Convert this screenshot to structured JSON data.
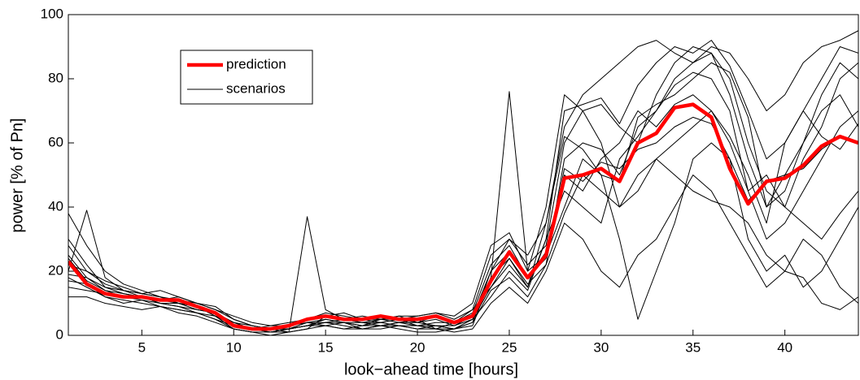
{
  "chart_data": {
    "type": "line",
    "x_label": "look−ahead time [hours]",
    "y_label": "power [% of Pn]",
    "x": [
      1,
      2,
      3,
      4,
      5,
      6,
      7,
      8,
      9,
      10,
      11,
      12,
      13,
      14,
      15,
      16,
      17,
      18,
      19,
      20,
      21,
      22,
      23,
      24,
      25,
      26,
      27,
      28,
      29,
      30,
      31,
      32,
      33,
      34,
      35,
      36,
      37,
      38,
      39,
      40,
      41,
      42,
      43,
      44
    ],
    "xlim": [
      1,
      44
    ],
    "xticks": [
      5,
      10,
      15,
      20,
      25,
      30,
      35,
      40
    ],
    "ylim": [
      0,
      100
    ],
    "yticks": [
      0,
      20,
      40,
      60,
      80,
      100
    ],
    "legend": "upper left",
    "series": [
      {
        "name": "scenarios",
        "color": "#000000",
        "lines": [
          [
            30,
            22,
            15,
            14,
            13,
            12,
            10,
            9,
            6,
            4,
            3,
            2,
            2,
            3,
            5,
            4,
            3,
            4,
            5,
            3,
            2,
            4,
            8,
            15,
            24,
            16,
            22,
            55,
            60,
            58,
            50,
            65,
            70,
            80,
            85,
            88,
            75,
            55,
            40,
            50,
            60,
            70,
            75,
            65
          ],
          [
            18,
            15,
            12,
            10,
            11,
            9,
            8,
            7,
            5,
            2,
            1,
            1,
            2,
            4,
            3,
            2,
            3,
            5,
            6,
            4,
            5,
            3,
            5,
            12,
            20,
            14,
            30,
            45,
            40,
            35,
            55,
            62,
            70,
            78,
            82,
            80,
            70,
            45,
            30,
            35,
            45,
            55,
            65,
            70
          ],
          [
            25,
            18,
            14,
            13,
            12,
            11,
            12,
            10,
            8,
            5,
            3,
            2,
            1,
            2,
            6,
            7,
            5,
            4,
            3,
            2,
            3,
            2,
            4,
            20,
            30,
            22,
            28,
            60,
            70,
            72,
            65,
            60,
            75,
            85,
            90,
            88,
            80,
            60,
            45,
            40,
            55,
            65,
            80,
            85
          ],
          [
            38,
            28,
            20,
            16,
            14,
            12,
            10,
            8,
            7,
            4,
            2,
            1,
            1,
            37,
            8,
            5,
            4,
            3,
            2,
            1,
            1,
            2,
            3,
            18,
            76,
            20,
            40,
            75,
            70,
            60,
            40,
            50,
            55,
            60,
            65,
            70,
            62,
            50,
            35,
            60,
            70,
            80,
            90,
            88
          ],
          [
            12,
            12,
            10,
            9,
            8,
            9,
            7,
            6,
            4,
            2,
            1,
            0,
            1,
            2,
            3,
            4,
            2,
            3,
            4,
            5,
            2,
            1,
            2,
            10,
            15,
            10,
            20,
            35,
            30,
            20,
            15,
            25,
            30,
            40,
            50,
            45,
            35,
            25,
            15,
            20,
            30,
            25,
            15,
            10
          ],
          [
            20,
            39,
            18,
            14,
            12,
            10,
            9,
            8,
            7,
            3,
            2,
            3,
            4,
            5,
            6,
            5,
            4,
            4,
            5,
            6,
            7,
            5,
            8,
            25,
            30,
            25,
            35,
            65,
            75,
            80,
            85,
            90,
            92,
            88,
            85,
            90,
            88,
            80,
            70,
            75,
            85,
            90,
            92,
            95
          ],
          [
            15,
            14,
            13,
            12,
            11,
            10,
            9,
            7,
            5,
            3,
            2,
            2,
            3,
            4,
            4,
            3,
            2,
            2,
            3,
            3,
            4,
            4,
            7,
            22,
            28,
            18,
            26,
            50,
            45,
            55,
            60,
            70,
            65,
            72,
            75,
            70,
            60,
            45,
            50,
            40,
            35,
            30,
            38,
            45
          ],
          [
            22,
            20,
            16,
            14,
            13,
            14,
            12,
            10,
            8,
            6,
            4,
            3,
            3,
            5,
            7,
            6,
            5,
            5,
            6,
            6,
            7,
            6,
            10,
            28,
            32,
            20,
            25,
            40,
            55,
            50,
            30,
            5,
            20,
            35,
            55,
            60,
            55,
            30,
            20,
            25,
            15,
            20,
            30,
            40
          ],
          [
            28,
            20,
            17,
            15,
            13,
            12,
            11,
            10,
            9,
            5,
            3,
            2,
            2,
            3,
            4,
            5,
            6,
            5,
            4,
            3,
            3,
            2,
            5,
            15,
            22,
            15,
            30,
            70,
            72,
            74,
            66,
            78,
            85,
            90,
            88,
            92,
            84,
            70,
            55,
            60,
            70,
            62,
            58,
            66
          ],
          [
            17,
            16,
            12,
            11,
            10,
            9,
            8,
            7,
            6,
            2,
            1,
            1,
            2,
            3,
            3,
            2,
            2,
            3,
            3,
            2,
            2,
            2,
            4,
            14,
            18,
            12,
            22,
            38,
            50,
            45,
            40,
            45,
            55,
            50,
            45,
            42,
            40,
            35,
            25,
            20,
            18,
            10,
            8,
            12
          ],
          [
            24,
            17,
            14,
            12,
            12,
            11,
            10,
            9,
            6,
            3,
            2,
            2,
            2,
            4,
            5,
            4,
            4,
            5,
            5,
            4,
            6,
            4,
            6,
            20,
            26,
            18,
            24,
            52,
            48,
            54,
            52,
            58,
            60,
            65,
            68,
            66,
            55,
            42,
            48,
            50,
            52,
            58,
            62,
            60
          ],
          [
            19,
            18,
            15,
            13,
            12,
            10,
            10,
            9,
            7,
            4,
            2,
            1,
            2,
            3,
            4,
            4,
            3,
            3,
            4,
            4,
            3,
            3,
            6,
            18,
            24,
            15,
            35,
            62,
            58,
            50,
            48,
            68,
            72,
            75,
            80,
            85,
            82,
            68,
            40,
            45,
            60,
            75,
            85,
            80
          ]
        ]
      },
      {
        "name": "prediction",
        "color": "#ff0000",
        "values": [
          23,
          16,
          13,
          12,
          12,
          11,
          11,
          9,
          7,
          3,
          2,
          2,
          3,
          5,
          6,
          5,
          5,
          6,
          5,
          5,
          6,
          4,
          6,
          17,
          26,
          18,
          25,
          49,
          50,
          52,
          48,
          60,
          63,
          71,
          72,
          68,
          52,
          41,
          48,
          49,
          53,
          59,
          62,
          60
        ]
      }
    ]
  }
}
